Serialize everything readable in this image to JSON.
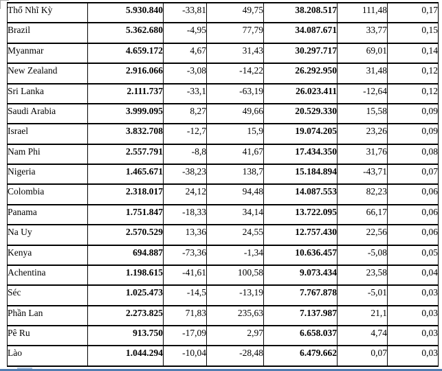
{
  "table": {
    "rows": [
      [
        "Thổ Nhĩ Kỳ",
        "5.930.840",
        "-33,81",
        "49,75",
        "38.208.517",
        "111,48",
        "0,17"
      ],
      [
        "Brazil",
        "5.362.680",
        "-4,95",
        "77,79",
        "34.087.671",
        "33,77",
        "0,15"
      ],
      [
        "Myanmar",
        "4.659.172",
        "4,67",
        "31,43",
        "30.297.717",
        "69,01",
        "0,14"
      ],
      [
        "New Zealand",
        "2.916.066",
        "-3,08",
        "-14,22",
        "26.292.950",
        "31,48",
        "0,12"
      ],
      [
        "Sri Lanka",
        "2.111.737",
        "-33,1",
        "-63,19",
        "26.023.411",
        "-12,64",
        "0,12"
      ],
      [
        "Saudi Arabia",
        "3.999.095",
        "8,27",
        "49,66",
        "20.529.330",
        "15,58",
        "0,09"
      ],
      [
        "Israel",
        "3.832.708",
        "-12,7",
        "15,9",
        "19.074.205",
        "23,26",
        "0,09"
      ],
      [
        "Nam Phi",
        "2.557.791",
        "-8,8",
        "41,67",
        "17.434.350",
        "31,76",
        "0,08"
      ],
      [
        "Nigeria",
        "1.465.671",
        "-38,23",
        "138,7",
        "15.184.894",
        "-43,71",
        "0,07"
      ],
      [
        "Colombia",
        "2.318.017",
        "24,12",
        "94,48",
        "14.087.553",
        "82,23",
        "0,06"
      ],
      [
        "Panama",
        "1.751.847",
        "-18,33",
        "34,14",
        "13.722.095",
        "66,17",
        "0,06"
      ],
      [
        "Na Uy",
        "2.570.529",
        "13,36",
        "24,55",
        "12.757.430",
        "22,56",
        "0,06"
      ],
      [
        "Kenya",
        "694.887",
        "-73,36",
        "-1,34",
        "10.636.457",
        "-5,08",
        "0,05"
      ],
      [
        "Achentina",
        "1.198.615",
        "-41,61",
        "100,58",
        "9.073.434",
        "23,58",
        "0,04"
      ],
      [
        "Séc",
        "1.025.473",
        "-14,5",
        "-13,19",
        "7.767.878",
        "-5,01",
        "0,03"
      ],
      [
        "Phần Lan",
        "2.273.825",
        "71,83",
        "235,63",
        "7.137.987",
        "21,1",
        "0,03"
      ],
      [
        "Pê Ru",
        "913.750",
        "-17,09",
        "2,97",
        "6.658.037",
        "4,74",
        "0,03"
      ],
      [
        "Lào",
        "1.044.294",
        "-10,04",
        "-28,48",
        "6.479.662",
        "0,07",
        "0,03"
      ]
    ]
  },
  "decor": {
    "border_color": "#000000",
    "edge_bar_color": "#517cb0",
    "edge_notch_color": "#a9c0dc",
    "corner_artifact_color": "#a8a8a8"
  }
}
